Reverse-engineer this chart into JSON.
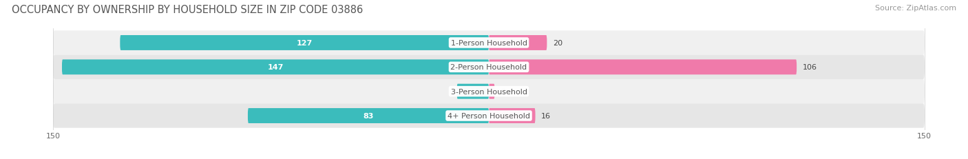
{
  "title": "OCCUPANCY BY OWNERSHIP BY HOUSEHOLD SIZE IN ZIP CODE 03886",
  "source": "Source: ZipAtlas.com",
  "categories": [
    "1-Person Household",
    "2-Person Household",
    "3-Person Household",
    "4+ Person Household"
  ],
  "owner_values": [
    127,
    147,
    11,
    83
  ],
  "renter_values": [
    20,
    106,
    2,
    16
  ],
  "owner_color": "#3bbcbc",
  "renter_color": "#f07aaa",
  "renter_color_strong": "#f07aaa",
  "xlim": 150,
  "title_fontsize": 10.5,
  "source_fontsize": 8,
  "value_fontsize": 8,
  "label_fontsize": 8,
  "tick_fontsize": 8,
  "legend_fontsize": 8,
  "bar_height": 0.62,
  "figure_bg": "#ffffff",
  "row_bg_odd": "#f0f0f0",
  "row_bg_even": "#e6e6e6"
}
